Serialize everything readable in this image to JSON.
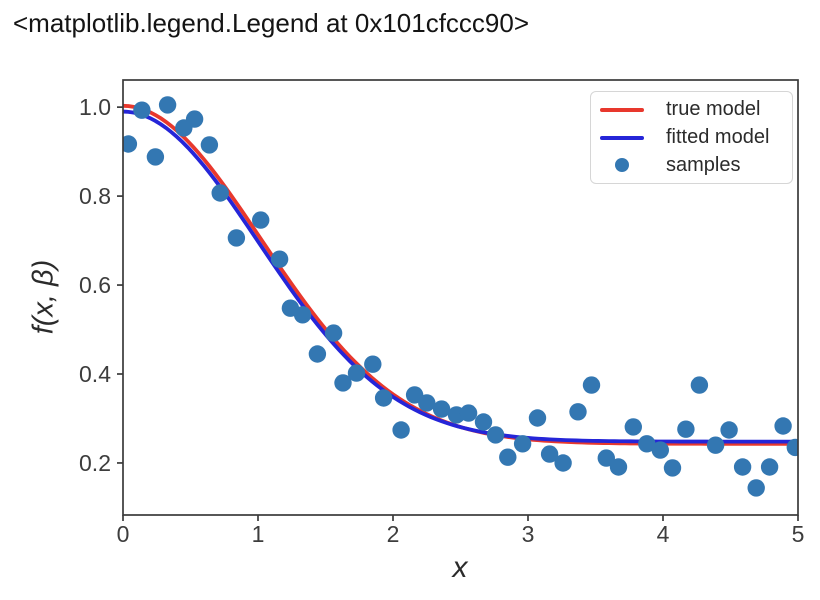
{
  "header": {
    "title": "<matplotlib.legend.Legend at 0x101cfccc90>"
  },
  "chart_data": {
    "type": "scatter",
    "title": "",
    "xlabel": "x",
    "ylabel": "f(x, β)",
    "xlim": [
      0,
      5
    ],
    "ylim": [
      0.083,
      1.061
    ],
    "x_ticks": [
      0,
      1,
      2,
      3,
      4,
      5
    ],
    "x_tick_labels": [
      "0",
      "1",
      "2",
      "3",
      "4",
      "5"
    ],
    "y_ticks": [
      1.0,
      0.8,
      0.6,
      0.4,
      0.2
    ],
    "y_tick_labels": [
      "1.0",
      "0.8",
      "0.6",
      "0.4",
      "0.2"
    ],
    "grid": false,
    "axis_color": "#3a3a3a",
    "tick_label_color": "#3d3d3d",
    "legend_position": "upper right",
    "legend": {
      "items": [
        {
          "label": "true model",
          "swatch": "line",
          "color": "#e8382d"
        },
        {
          "label": "fitted model",
          "swatch": "line",
          "color": "#2525d8"
        },
        {
          "label": "samples",
          "swatch": "dot",
          "color": "#3377b2"
        }
      ]
    },
    "series": [
      {
        "name": "true model",
        "type": "line",
        "color": "#e8382d",
        "model": "f(x) = a + b*exp(-c*x^2)",
        "params": {
          "a": 0.243,
          "b": 0.76,
          "c": 0.48
        }
      },
      {
        "name": "fitted model",
        "type": "line",
        "color": "#2525d8",
        "model": "f(x) = a + b*exp(-c*x^2)",
        "params": {
          "a": 0.248,
          "b": 0.742,
          "c": 0.5
        }
      },
      {
        "name": "samples",
        "type": "scatter",
        "color": "#3377b2",
        "marker_radius": 8.7,
        "points": [
          [
            0.04,
            0.917
          ],
          [
            0.14,
            0.993
          ],
          [
            0.24,
            0.888
          ],
          [
            0.33,
            1.005
          ],
          [
            0.45,
            0.953
          ],
          [
            0.53,
            0.973
          ],
          [
            0.64,
            0.915
          ],
          [
            0.72,
            0.807
          ],
          [
            0.84,
            0.706
          ],
          [
            1.02,
            0.746
          ],
          [
            1.16,
            0.658
          ],
          [
            1.24,
            0.548
          ],
          [
            1.33,
            0.533
          ],
          [
            1.44,
            0.445
          ],
          [
            1.56,
            0.492
          ],
          [
            1.63,
            0.38
          ],
          [
            1.73,
            0.402
          ],
          [
            1.85,
            0.422
          ],
          [
            1.93,
            0.346
          ],
          [
            2.06,
            0.274
          ],
          [
            2.16,
            0.353
          ],
          [
            2.25,
            0.335
          ],
          [
            2.36,
            0.321
          ],
          [
            2.47,
            0.308
          ],
          [
            2.56,
            0.312
          ],
          [
            2.67,
            0.292
          ],
          [
            2.76,
            0.263
          ],
          [
            2.85,
            0.213
          ],
          [
            2.96,
            0.243
          ],
          [
            3.07,
            0.301
          ],
          [
            3.16,
            0.22
          ],
          [
            3.26,
            0.2
          ],
          [
            3.37,
            0.315
          ],
          [
            3.47,
            0.375
          ],
          [
            3.58,
            0.211
          ],
          [
            3.67,
            0.191
          ],
          [
            3.78,
            0.281
          ],
          [
            3.88,
            0.243
          ],
          [
            3.98,
            0.229
          ],
          [
            4.07,
            0.189
          ],
          [
            4.17,
            0.276
          ],
          [
            4.27,
            0.375
          ],
          [
            4.39,
            0.24
          ],
          [
            4.49,
            0.274
          ],
          [
            4.59,
            0.191
          ],
          [
            4.69,
            0.144
          ],
          [
            4.79,
            0.191
          ],
          [
            4.89,
            0.283
          ],
          [
            4.98,
            0.235
          ]
        ]
      }
    ]
  }
}
